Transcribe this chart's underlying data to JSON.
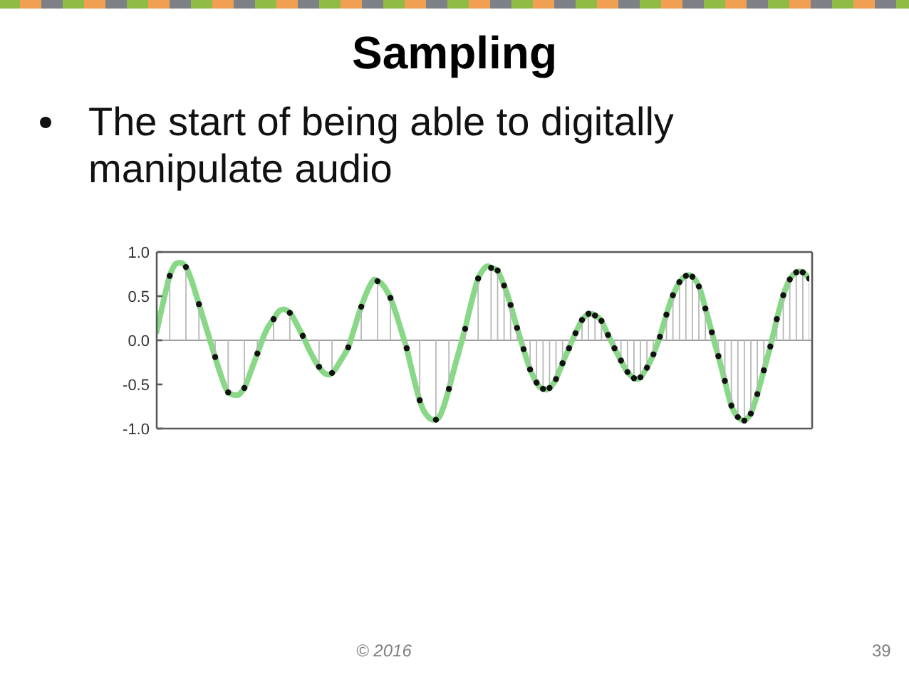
{
  "chart_data": {
    "type": "line",
    "title": "Sampling",
    "subtitle": "The start of being able to digitally manipulate audio",
    "annotations": [
      "© 2016",
      "39"
    ],
    "categories": [
      null,
      null,
      null,
      null,
      null,
      null,
      null,
      null,
      null,
      null,
      null,
      null,
      null,
      null,
      null,
      null,
      null,
      null,
      null,
      null,
      null,
      null,
      null,
      null,
      null,
      null,
      null,
      null,
      null,
      null,
      null,
      null,
      null,
      null,
      null,
      null,
      null,
      null,
      null,
      null,
      null,
      null,
      null,
      null,
      null,
      null,
      null,
      null,
      null,
      null,
      null,
      null,
      null,
      null,
      null,
      null,
      null,
      null,
      null,
      null,
      null,
      null,
      null,
      null,
      null,
      null,
      null,
      null,
      null,
      null,
      null,
      null,
      null,
      null,
      null,
      null,
      null,
      null,
      null,
      null,
      null,
      null,
      null,
      null,
      null,
      null,
      null,
      null,
      null,
      null,
      null,
      null,
      null,
      null,
      null,
      null,
      null,
      null,
      null,
      null,
      null,
      null,
      null,
      null,
      null,
      null,
      null,
      null,
      null,
      null,
      null,
      null,
      null,
      null,
      null,
      null,
      null,
      null,
      null,
      null,
      null,
      null,
      null,
      null,
      null,
      null,
      null,
      null,
      null,
      null,
      null,
      null,
      null,
      null,
      null,
      null,
      null,
      null,
      null,
      null,
      null,
      null,
      null,
      null,
      null,
      null,
      null,
      null,
      null,
      null,
      null,
      null,
      null,
      null,
      null,
      null,
      null,
      null,
      null,
      null,
      null,
      null,
      null,
      null,
      null,
      null,
      null,
      null,
      null,
      null,
      null,
      null,
      null,
      null,
      null,
      null,
      null,
      null,
      null,
      null,
      null,
      null,
      null,
      null,
      null,
      null,
      null,
      null,
      null,
      null,
      null,
      null,
      null,
      null,
      null,
      null,
      null,
      null,
      null,
      null,
      null,
      null
    ],
    "series": [
      {
        "type": "line",
        "color": "#88d888",
        "marker": "none",
        "values": [
          0.1,
          0.27,
          0.43,
          0.59,
          0.73,
          0.82,
          0.87,
          0.88,
          0.87,
          0.83,
          0.75,
          0.65,
          0.53,
          0.41,
          0.29,
          0.17,
          0.05,
          -0.07,
          -0.19,
          -0.31,
          -0.42,
          -0.52,
          -0.59,
          -0.61,
          -0.62,
          -0.62,
          -0.59,
          -0.54,
          -0.45,
          -0.35,
          -0.25,
          -0.15,
          -0.05,
          0.05,
          0.13,
          0.19,
          0.24,
          0.3,
          0.34,
          0.35,
          0.34,
          0.31,
          0.26,
          0.19,
          0.12,
          0.05,
          -0.03,
          -0.11,
          -0.18,
          -0.25,
          -0.3,
          -0.35,
          -0.38,
          -0.39,
          -0.37,
          -0.33,
          -0.27,
          -0.21,
          -0.15,
          -0.08,
          0.03,
          0.15,
          0.27,
          0.38,
          0.48,
          0.57,
          0.64,
          0.69,
          0.67,
          0.65,
          0.61,
          0.55,
          0.48,
          0.38,
          0.27,
          0.15,
          0.03,
          -0.09,
          -0.25,
          -0.4,
          -0.55,
          -0.68,
          -0.78,
          -0.84,
          -0.88,
          -0.9,
          -0.9,
          -0.87,
          -0.79,
          -0.68,
          -0.55,
          -0.41,
          -0.27,
          -0.14,
          0.0,
          0.13,
          0.29,
          0.44,
          0.58,
          0.7,
          0.77,
          0.82,
          0.84,
          0.82,
          0.81,
          0.79,
          0.71,
          0.62,
          0.52,
          0.4,
          0.27,
          0.14,
          0.02,
          -0.1,
          -0.22,
          -0.33,
          -0.41,
          -0.48,
          -0.53,
          -0.55,
          -0.56,
          -0.54,
          -0.5,
          -0.44,
          -0.35,
          -0.26,
          -0.17,
          -0.09,
          0.0,
          0.08,
          0.16,
          0.23,
          0.27,
          0.3,
          0.3,
          0.28,
          0.26,
          0.22,
          0.14,
          0.06,
          -0.01,
          -0.09,
          -0.16,
          -0.23,
          -0.3,
          -0.36,
          -0.4,
          -0.43,
          -0.44,
          -0.42,
          -0.37,
          -0.31,
          -0.24,
          -0.16,
          -0.06,
          0.04,
          0.17,
          0.29,
          0.41,
          0.51,
          0.59,
          0.66,
          0.7,
          0.73,
          0.74,
          0.72,
          0.68,
          0.61,
          0.5,
          0.36,
          0.23,
          0.09,
          -0.05,
          -0.18,
          -0.32,
          -0.46,
          -0.61,
          -0.74,
          -0.82,
          -0.87,
          -0.9,
          -0.91,
          -0.88,
          -0.83,
          -0.73,
          -0.61,
          -0.48,
          -0.34,
          -0.21,
          -0.07,
          0.08,
          0.24,
          0.38,
          0.51,
          0.61,
          0.69,
          0.74,
          0.77,
          0.78,
          0.77,
          0.74,
          0.7
        ]
      },
      {
        "type": "lollipop",
        "color": "#111111",
        "marker": "circle",
        "values": [
          null,
          null,
          null,
          null,
          0.73,
          null,
          null,
          null,
          null,
          0.83,
          null,
          null,
          null,
          0.41,
          null,
          null,
          null,
          null,
          -0.19,
          null,
          null,
          null,
          -0.59,
          null,
          null,
          null,
          null,
          -0.54,
          null,
          null,
          null,
          -0.15,
          null,
          null,
          null,
          null,
          0.24,
          null,
          null,
          null,
          null,
          0.31,
          null,
          null,
          null,
          0.05,
          null,
          null,
          null,
          null,
          -0.3,
          null,
          null,
          null,
          -0.37,
          null,
          null,
          null,
          null,
          -0.08,
          null,
          null,
          null,
          0.38,
          null,
          null,
          null,
          null,
          0.67,
          null,
          null,
          null,
          0.48,
          null,
          null,
          null,
          null,
          -0.09,
          null,
          null,
          null,
          -0.68,
          null,
          null,
          null,
          null,
          -0.9,
          null,
          null,
          null,
          -0.55,
          null,
          null,
          null,
          null,
          0.13,
          null,
          null,
          null,
          0.7,
          null,
          null,
          null,
          0.82,
          null,
          0.79,
          null,
          0.62,
          null,
          0.4,
          null,
          0.14,
          null,
          -0.1,
          null,
          -0.33,
          null,
          -0.48,
          null,
          -0.55,
          null,
          -0.54,
          null,
          -0.44,
          null,
          -0.26,
          null,
          -0.09,
          null,
          0.08,
          null,
          0.23,
          null,
          0.3,
          null,
          0.28,
          null,
          0.22,
          null,
          0.06,
          null,
          -0.09,
          null,
          -0.23,
          null,
          -0.36,
          null,
          -0.43,
          null,
          -0.42,
          null,
          -0.31,
          null,
          -0.16,
          null,
          0.04,
          null,
          0.29,
          null,
          0.51,
          null,
          0.66,
          null,
          0.73,
          null,
          0.72,
          null,
          0.61,
          null,
          0.36,
          null,
          0.09,
          null,
          -0.18,
          null,
          -0.46,
          null,
          -0.74,
          null,
          -0.87,
          null,
          -0.91,
          null,
          -0.83,
          null,
          -0.61,
          null,
          -0.34,
          null,
          -0.07,
          null,
          0.24,
          null,
          0.51,
          null,
          0.69,
          null,
          0.77,
          null,
          0.77,
          null,
          0.7
        ]
      }
    ],
    "ylim": [
      -1,
      1
    ],
    "yticks": [
      {
        "value": -1,
        "label": "-1.0"
      },
      -0.5,
      {
        "value": 0,
        "label": "0.0"
      },
      0.5,
      {
        "value": 1,
        "label": "1.0"
      }
    ],
    "ref_lines": [
      {
        "axis": "y",
        "value": 0,
        "color": "#a0a0a0"
      }
    ],
    "tick_labels": "y"
  }
}
